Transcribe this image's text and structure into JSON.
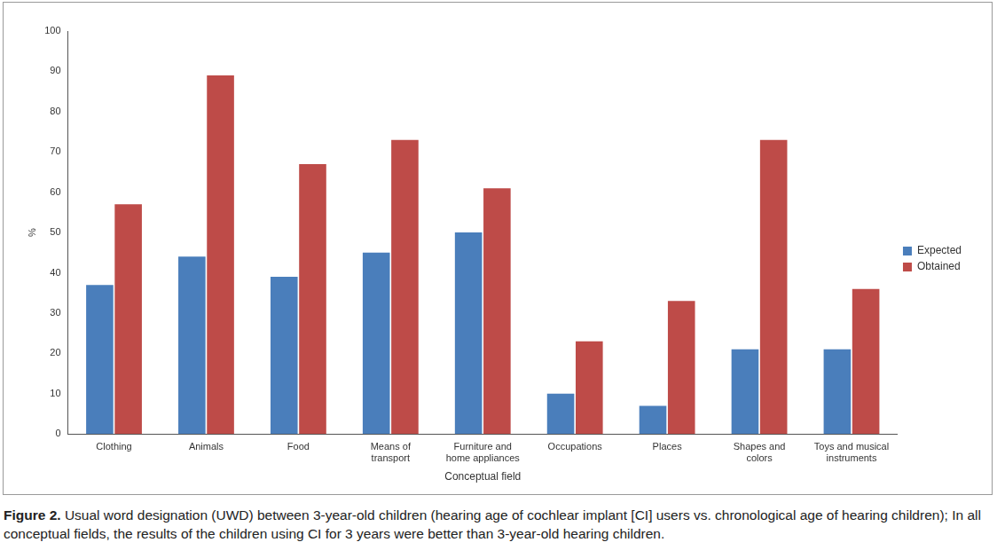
{
  "chart_data": {
    "type": "bar",
    "x_label": "Conceptual field",
    "y_label": "%",
    "categories": [
      "Clothing",
      "Animals",
      "Food",
      "Means of transport",
      "Furniture and home appliances",
      "Occupations",
      "Places",
      "Shapes and colors",
      "Toys and musical instruments"
    ],
    "series": [
      {
        "name": "Expected",
        "color": "#4a7ebb",
        "values": [
          37,
          44,
          39,
          45,
          50,
          10,
          7,
          21,
          21
        ]
      },
      {
        "name": "Obtained",
        "color": "#be4b48",
        "values": [
          57,
          89,
          67,
          73,
          61,
          23,
          33,
          73,
          36
        ]
      }
    ],
    "ylim": [
      0,
      100
    ],
    "yticks": [
      0,
      10,
      20,
      30,
      40,
      50,
      60,
      70,
      80,
      90,
      100
    ],
    "grid": false,
    "legend": "right"
  },
  "caption": {
    "label": "Figure 2.",
    "text": "Usual word designation (UWD) between 3-year-old children (hearing age of cochlear implant [CI] users vs. chronological age of hearing children); In all conceptual fields, the results of the children using CI for 3 years were better than 3-year-old hearing children."
  }
}
